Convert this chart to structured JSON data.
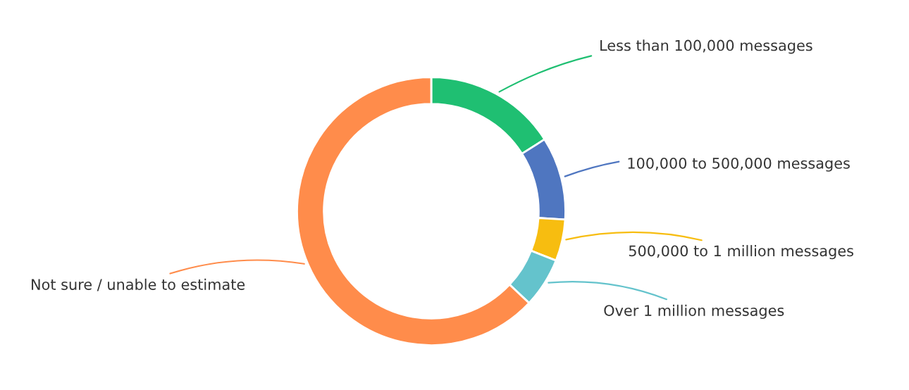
{
  "chart_data": {
    "type": "donut",
    "categories": [
      "Less than 100,000 messages",
      "100,000 to 500,000 messages",
      "500,000 to 1 million messages",
      "Over 1 million messages",
      "Not sure / unable to estimate"
    ],
    "values": [
      16,
      10,
      5,
      6,
      63
    ],
    "colors": [
      "#1fbf72",
      "#4f76c0",
      "#f7bd10",
      "#64c3cc",
      "#ff8c4b"
    ],
    "legend": false
  }
}
